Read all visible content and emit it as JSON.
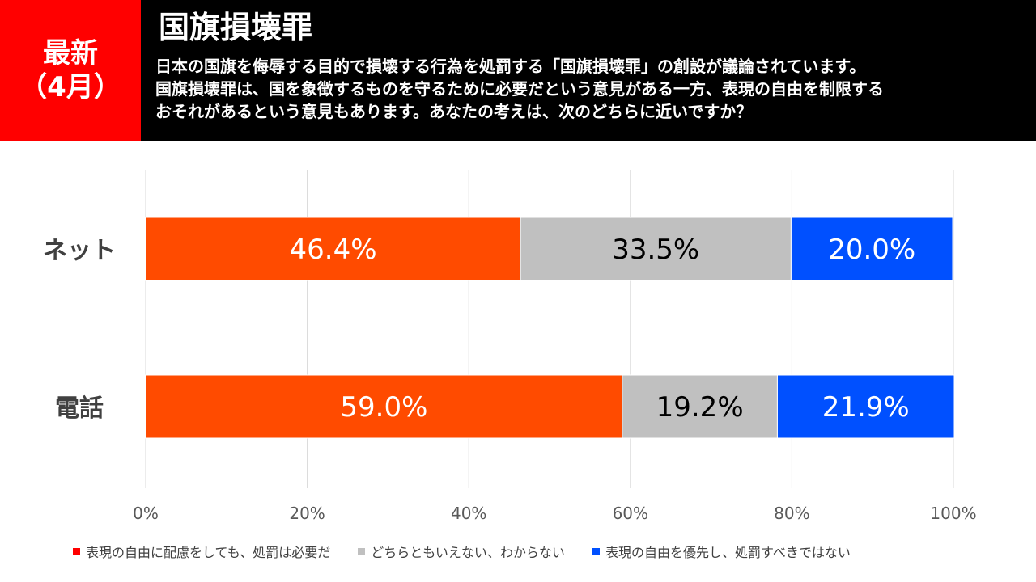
{
  "badge": {
    "line1": "最新",
    "line2": "（4月）",
    "color": "#ff0000"
  },
  "title": "国旗損壊罪",
  "question": [
    "日本の国旗を侮辱する目的で損壊する行為を処罰する「国旗損壊罪」の創設が議論されています。",
    "国旗損壊罪は、国を象徴するものを守るために必要だという意見がある一方、表現の自由を制限する",
    "おそれがあるという意見もあります。あなたの考えは、次のどちらに近いですか？"
  ],
  "chart_data": {
    "type": "bar",
    "orientation": "horizontal",
    "stacked": true,
    "categories": [
      "ネット",
      "電話"
    ],
    "series": [
      {
        "name": "表現の自由に配慮をしても、処罰は必要だ",
        "values": [
          46.4,
          59.0
        ],
        "color": "#ff4b00",
        "label_color": "#ffffff"
      },
      {
        "name": "どちらともいえない、わからない",
        "values": [
          33.5,
          19.2
        ],
        "color": "#c0c0c0",
        "label_color": "#000000"
      },
      {
        "name": "表現の自由を優先し、処罰すべきではない",
        "values": [
          20.0,
          21.9
        ],
        "color": "#0050ff",
        "label_color": "#ffffff"
      }
    ],
    "xlim": [
      0,
      100
    ],
    "xticks": [
      0,
      20,
      40,
      60,
      80,
      100
    ],
    "xtick_labels": [
      "0%",
      "20%",
      "40%",
      "60%",
      "80%",
      "100%"
    ],
    "value_labels": [
      [
        "46.4%",
        "59.0%"
      ],
      [
        "33.5%",
        "19.2%"
      ],
      [
        "20.0%",
        "21.9%"
      ]
    ],
    "grid": true,
    "legend_position": "bottom"
  }
}
